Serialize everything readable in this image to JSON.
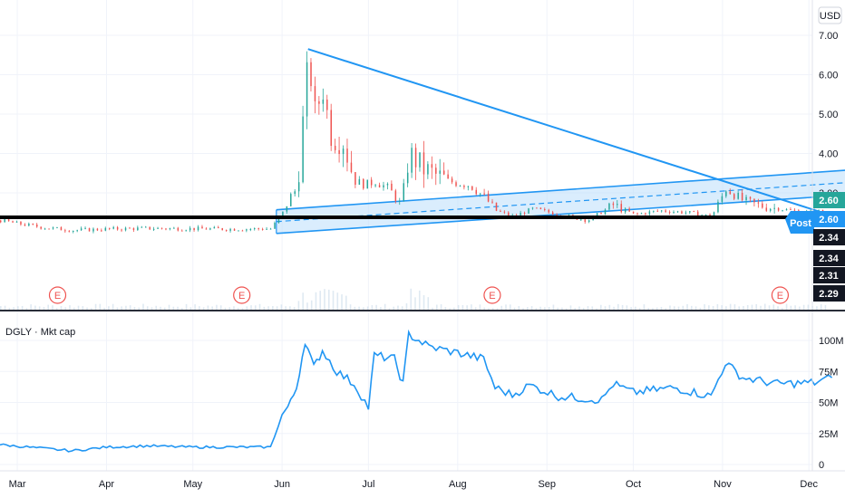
{
  "chart_data": [
    {
      "type": "candlestick",
      "currency": "USD",
      "x_ticks": [
        "Mar",
        "Apr",
        "May",
        "Jun",
        "Jul",
        "Aug",
        "Sep",
        "Oct",
        "Nov",
        "Dec"
      ],
      "y_ticks": [
        "7.00",
        "6.00",
        "5.00",
        "4.00",
        "3.00"
      ],
      "ylim": [
        1.9,
        7.3
      ],
      "price_path": [
        {
          "date": "Feb 24",
          "price": 2.3
        },
        {
          "date": "Mar 1",
          "price": 2.22
        },
        {
          "date": "Mar 10",
          "price": 2.12
        },
        {
          "date": "Mar 20",
          "price": 2.05
        },
        {
          "date": "Apr 1",
          "price": 2.08
        },
        {
          "date": "Apr 15",
          "price": 2.1
        },
        {
          "date": "May 1",
          "price": 2.09
        },
        {
          "date": "May 15",
          "price": 2.08
        },
        {
          "date": "May 28",
          "price": 2.09
        },
        {
          "date": "Jun 1",
          "price": 2.5
        },
        {
          "date": "Jun 4",
          "price": 2.95
        },
        {
          "date": "Jun 6",
          "price": 3.1
        },
        {
          "date": "Jun 10",
          "price": 6.5
        },
        {
          "date": "Jun 12",
          "price": 5.0
        },
        {
          "date": "Jun 15",
          "price": 5.6
        },
        {
          "date": "Jun 18",
          "price": 4.4
        },
        {
          "date": "Jun 22",
          "price": 4.3
        },
        {
          "date": "Jun 26",
          "price": 3.3
        },
        {
          "date": "Jun 30",
          "price": 3.2
        },
        {
          "date": "Jul 3",
          "price": 3.3
        },
        {
          "date": "Jul 8",
          "price": 3.1
        },
        {
          "date": "Jul 12",
          "price": 2.7
        },
        {
          "date": "Jul 15",
          "price": 4.0
        },
        {
          "date": "Jul 20",
          "price": 3.6
        },
        {
          "date": "Jul 28",
          "price": 3.3
        },
        {
          "date": "Aug 5",
          "price": 3.2
        },
        {
          "date": "Aug 10",
          "price": 2.9
        },
        {
          "date": "Aug 14",
          "price": 2.55
        },
        {
          "date": "Aug 20",
          "price": 2.4
        },
        {
          "date": "Aug 27",
          "price": 2.6
        },
        {
          "date": "Sep 5",
          "price": 2.45
        },
        {
          "date": "Sep 15",
          "price": 2.3
        },
        {
          "date": "Sep 24",
          "price": 2.7
        },
        {
          "date": "Oct 1",
          "price": 2.45
        },
        {
          "date": "Oct 10",
          "price": 2.55
        },
        {
          "date": "Oct 20",
          "price": 2.5
        },
        {
          "date": "Oct 28",
          "price": 2.4
        },
        {
          "date": "Nov 2",
          "price": 3.1
        },
        {
          "date": "Nov 8",
          "price": 2.8
        },
        {
          "date": "Nov 15",
          "price": 2.65
        },
        {
          "date": "Nov 25",
          "price": 2.55
        },
        {
          "date": "Dec 3",
          "price": 2.5
        },
        {
          "date": "Dec 7",
          "price": 2.6
        }
      ],
      "earnings_markers": [
        "E",
        "E",
        "E",
        "E"
      ],
      "price_labels": [
        {
          "text": "2.60",
          "color": "#26a69a"
        },
        {
          "text": "2.60",
          "color": "#2196f3"
        },
        {
          "text": "Post",
          "color": "#2196f3"
        },
        {
          "text": "2.34",
          "color": "#131722"
        },
        {
          "text": "2.34",
          "color": "#131722"
        },
        {
          "text": "2.31",
          "color": "#131722"
        },
        {
          "text": "2.29",
          "color": "#131722"
        }
      ],
      "drawings": {
        "trendline": {
          "from": {
            "date": "Jun 10",
            "price": 6.65
          },
          "to": {
            "date": "Dec 10",
            "price": 2.4
          }
        },
        "support_line": {
          "price": 2.38
        },
        "channel_upper": {
          "from": {
            "date": "May 30",
            "price": 2.57
          },
          "to": {
            "date": "Dec 19",
            "price": 3.6
          }
        },
        "channel_lower": {
          "from": {
            "date": "May 30",
            "price": 1.97
          },
          "to": {
            "date": "Dec 19",
            "price": 2.97
          }
        },
        "channel_mid_dashed": true
      },
      "colors": {
        "line": "#2196f3",
        "fill": "#bbdefb",
        "candle_up": "#26a69a",
        "candle_down": "#ef5350",
        "support": "#000000"
      }
    },
    {
      "type": "line",
      "title": "DGLY · Mkt cap",
      "y_ticks": [
        "100M",
        "75M",
        "50M",
        "25M",
        "0"
      ],
      "ylim": [
        0,
        112
      ],
      "points": [
        {
          "date": "Feb 24",
          "value": 16
        },
        {
          "date": "Mar 10",
          "value": 13
        },
        {
          "date": "Mar 20",
          "value": 11
        },
        {
          "date": "Apr 1",
          "value": 14
        },
        {
          "date": "Apr 15",
          "value": 15
        },
        {
          "date": "May 1",
          "value": 14
        },
        {
          "date": "May 28",
          "value": 14
        },
        {
          "date": "Jun 1",
          "value": 40
        },
        {
          "date": "Jun 4",
          "value": 50
        },
        {
          "date": "Jun 6",
          "value": 62
        },
        {
          "date": "Jun 9",
          "value": 100
        },
        {
          "date": "Jun 12",
          "value": 78
        },
        {
          "date": "Jun 15",
          "value": 92
        },
        {
          "date": "Jun 20",
          "value": 75
        },
        {
          "date": "Jun 26",
          "value": 65
        },
        {
          "date": "Jul 1",
          "value": 46
        },
        {
          "date": "Jul 3",
          "value": 88
        },
        {
          "date": "Jul 10",
          "value": 85
        },
        {
          "date": "Jul 13",
          "value": 65
        },
        {
          "date": "Jul 15",
          "value": 105
        },
        {
          "date": "Jul 22",
          "value": 95
        },
        {
          "date": "Aug 1",
          "value": 90
        },
        {
          "date": "Aug 10",
          "value": 85
        },
        {
          "date": "Aug 14",
          "value": 62
        },
        {
          "date": "Aug 20",
          "value": 56
        },
        {
          "date": "Aug 26",
          "value": 64
        },
        {
          "date": "Sep 5",
          "value": 55
        },
        {
          "date": "Sep 20",
          "value": 52
        },
        {
          "date": "Sep 24",
          "value": 65
        },
        {
          "date": "Oct 1",
          "value": 58
        },
        {
          "date": "Oct 15",
          "value": 62
        },
        {
          "date": "Oct 28",
          "value": 55
        },
        {
          "date": "Nov 2",
          "value": 82
        },
        {
          "date": "Nov 8",
          "value": 70
        },
        {
          "date": "Nov 20",
          "value": 65
        },
        {
          "date": "Dec 3",
          "value": 66
        },
        {
          "date": "Dec 9",
          "value": 70
        }
      ],
      "color": "#2196f3"
    }
  ]
}
